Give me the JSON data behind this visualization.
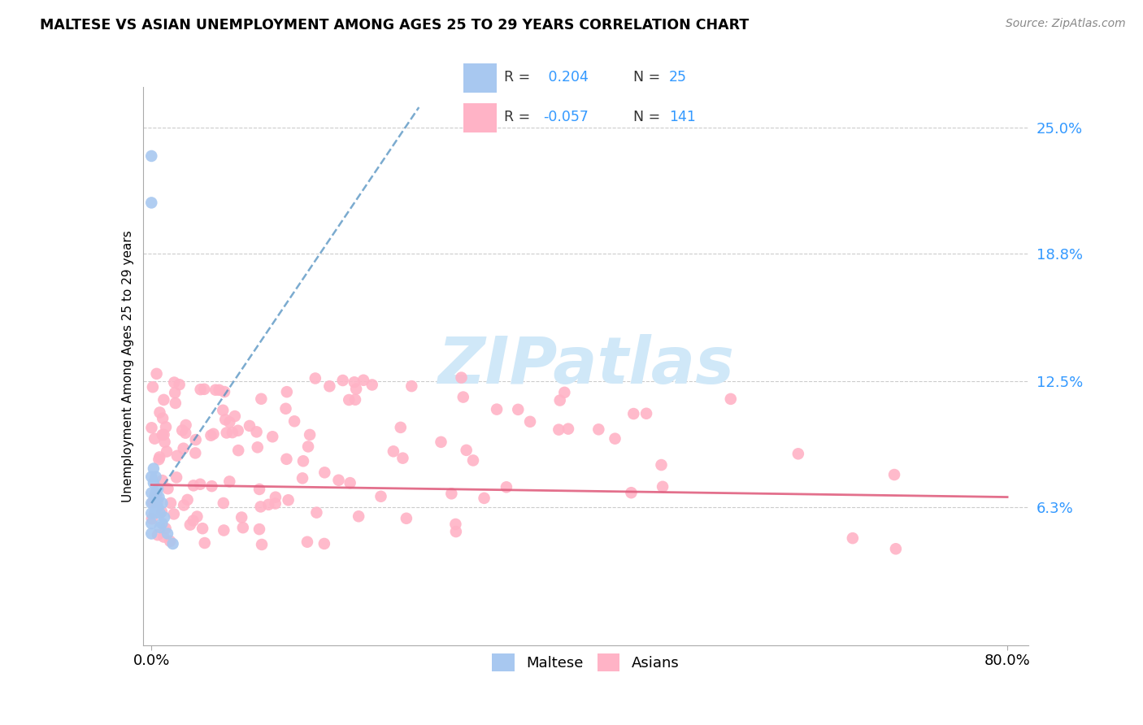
{
  "title": "MALTESE VS ASIAN UNEMPLOYMENT AMONG AGES 25 TO 29 YEARS CORRELATION CHART",
  "source": "Source: ZipAtlas.com",
  "ylabel": "Unemployment Among Ages 25 to 29 years",
  "xlim": [
    -0.008,
    0.82
  ],
  "ylim": [
    -0.005,
    0.27
  ],
  "ytick_positions": [
    0.063,
    0.125,
    0.188,
    0.25
  ],
  "ytick_labels": [
    "6.3%",
    "12.5%",
    "18.8%",
    "25.0%"
  ],
  "maltese_R": 0.204,
  "maltese_N": 25,
  "asian_R": -0.057,
  "asian_N": 141,
  "maltese_color": "#a8c8f0",
  "maltese_line_color": "#4f8fc0",
  "asian_color": "#ffb3c6",
  "asian_line_color": "#e06080",
  "background_color": "#ffffff",
  "grid_color": "#cccccc",
  "watermark_text": "ZIPatlas",
  "watermark_color": "#d0e8f8",
  "title_fontsize": 12.5,
  "legend_r1": "R =  0.204",
  "legend_n1": "N =  25",
  "legend_r2": "R = -0.057",
  "legend_n2": "N = 141",
  "legend_color_r": "#3399ff",
  "legend_color_label": "#333333"
}
